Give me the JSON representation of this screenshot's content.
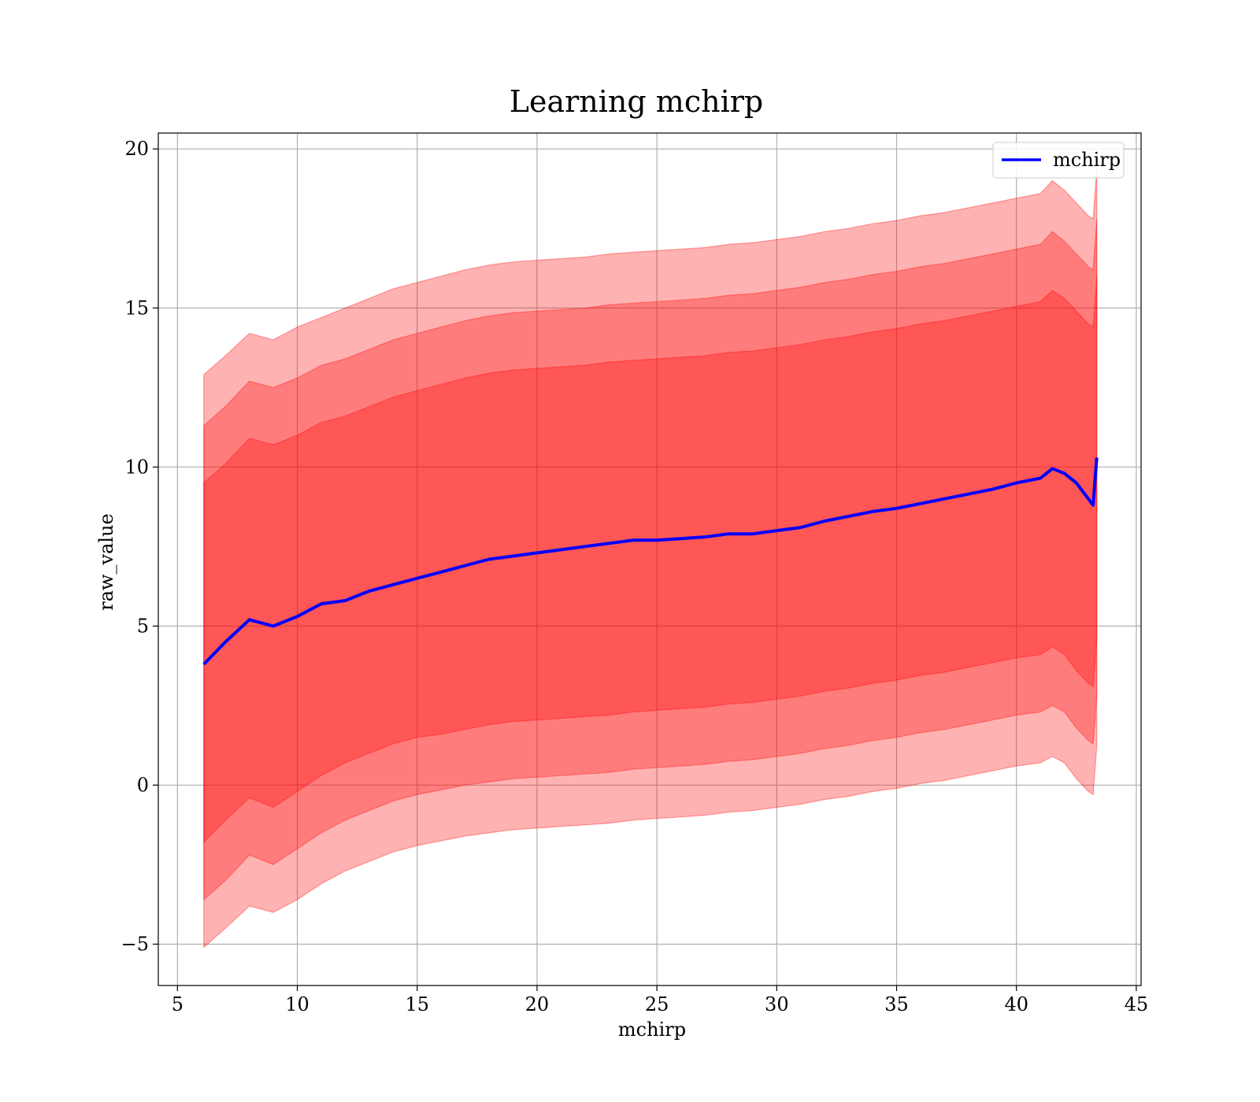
{
  "chart_data": {
    "type": "line",
    "title": "Learning mchirp",
    "xlabel": "mchirp",
    "ylabel": "raw_value",
    "xlim": [
      4.2,
      45.2
    ],
    "ylim": [
      -6.3,
      20.5
    ],
    "xticks": [
      5,
      10,
      15,
      20,
      25,
      30,
      35,
      40,
      45
    ],
    "yticks": [
      -5,
      0,
      5,
      10,
      15,
      20
    ],
    "xtick_labels": [
      "5",
      "10",
      "15",
      "20",
      "25",
      "30",
      "35",
      "40",
      "45"
    ],
    "ytick_labels": [
      "−5",
      "0",
      "5",
      "10",
      "15",
      "20"
    ],
    "grid": true,
    "legend": {
      "position": "top-right",
      "entries": [
        "mchirp"
      ]
    },
    "colors": {
      "line": "#0000ff",
      "band": "#ff0000",
      "grid": "#b0b0b0"
    },
    "x": [
      6.1,
      7,
      8,
      9,
      10,
      11,
      12,
      13,
      14,
      15,
      16,
      17,
      18,
      19,
      20,
      21,
      22,
      23,
      24,
      25,
      26,
      27,
      28,
      29,
      30,
      31,
      32,
      33,
      34,
      35,
      36,
      37,
      38,
      39,
      40,
      41,
      41.5,
      42,
      42.5,
      43,
      43.2,
      43.35
    ],
    "series": [
      {
        "name": "mchirp",
        "values": [
          3.8,
          4.5,
          5.2,
          5.0,
          5.3,
          5.7,
          5.8,
          6.1,
          6.3,
          6.5,
          6.7,
          6.9,
          7.1,
          7.2,
          7.3,
          7.4,
          7.5,
          7.6,
          7.7,
          7.7,
          7.75,
          7.8,
          7.9,
          7.9,
          8.0,
          8.1,
          8.3,
          8.45,
          8.6,
          8.7,
          8.85,
          9.0,
          9.15,
          9.3,
          9.5,
          9.65,
          9.95,
          9.8,
          9.5,
          9.0,
          8.8,
          10.3
        ]
      }
    ],
    "bands": [
      {
        "lower": [
          -1.8,
          -1.1,
          -0.4,
          -0.7,
          -0.2,
          0.3,
          0.7,
          1.0,
          1.3,
          1.5,
          1.6,
          1.75,
          1.9,
          2.0,
          2.05,
          2.1,
          2.15,
          2.2,
          2.3,
          2.35,
          2.4,
          2.45,
          2.55,
          2.6,
          2.7,
          2.8,
          2.95,
          3.05,
          3.2,
          3.3,
          3.45,
          3.55,
          3.7,
          3.85,
          4.0,
          4.1,
          4.35,
          4.1,
          3.6,
          3.2,
          3.1,
          4.6
        ],
        "upper": [
          9.5,
          10.1,
          10.9,
          10.7,
          11.0,
          11.4,
          11.6,
          11.9,
          12.2,
          12.4,
          12.6,
          12.8,
          12.95,
          13.05,
          13.1,
          13.15,
          13.2,
          13.3,
          13.35,
          13.4,
          13.45,
          13.5,
          13.6,
          13.65,
          13.75,
          13.85,
          14.0,
          14.1,
          14.25,
          14.35,
          14.5,
          14.6,
          14.75,
          14.9,
          15.05,
          15.2,
          15.55,
          15.3,
          14.9,
          14.5,
          14.4,
          16.0
        ]
      },
      {
        "lower": [
          -3.6,
          -3.0,
          -2.2,
          -2.5,
          -2.0,
          -1.5,
          -1.1,
          -0.8,
          -0.5,
          -0.3,
          -0.15,
          0.0,
          0.1,
          0.2,
          0.25,
          0.3,
          0.35,
          0.4,
          0.5,
          0.55,
          0.6,
          0.65,
          0.75,
          0.8,
          0.9,
          1.0,
          1.15,
          1.25,
          1.4,
          1.5,
          1.65,
          1.75,
          1.9,
          2.05,
          2.2,
          2.3,
          2.5,
          2.3,
          1.8,
          1.4,
          1.3,
          2.8
        ],
        "upper": [
          11.3,
          11.9,
          12.7,
          12.5,
          12.8,
          13.2,
          13.4,
          13.7,
          14.0,
          14.2,
          14.4,
          14.6,
          14.75,
          14.85,
          14.9,
          14.95,
          15.0,
          15.1,
          15.15,
          15.2,
          15.25,
          15.3,
          15.4,
          15.45,
          15.55,
          15.65,
          15.8,
          15.9,
          16.05,
          16.15,
          16.3,
          16.4,
          16.55,
          16.7,
          16.85,
          17.0,
          17.4,
          17.1,
          16.7,
          16.3,
          16.2,
          17.8
        ]
      },
      {
        "lower": [
          -5.1,
          -4.5,
          -3.8,
          -4.0,
          -3.6,
          -3.1,
          -2.7,
          -2.4,
          -2.1,
          -1.9,
          -1.75,
          -1.6,
          -1.5,
          -1.4,
          -1.35,
          -1.3,
          -1.25,
          -1.2,
          -1.1,
          -1.05,
          -1.0,
          -0.95,
          -0.85,
          -0.8,
          -0.7,
          -0.6,
          -0.45,
          -0.35,
          -0.2,
          -0.1,
          0.05,
          0.15,
          0.3,
          0.45,
          0.6,
          0.7,
          0.9,
          0.7,
          0.2,
          -0.2,
          -0.3,
          1.2
        ],
        "upper": [
          12.9,
          13.5,
          14.2,
          14.0,
          14.4,
          14.7,
          15.0,
          15.3,
          15.6,
          15.8,
          16.0,
          16.2,
          16.35,
          16.45,
          16.5,
          16.55,
          16.6,
          16.7,
          16.75,
          16.8,
          16.85,
          16.9,
          17.0,
          17.05,
          17.15,
          17.25,
          17.4,
          17.5,
          17.65,
          17.75,
          17.9,
          18.0,
          18.15,
          18.3,
          18.45,
          18.6,
          19.0,
          18.7,
          18.3,
          17.9,
          17.8,
          19.4
        ]
      }
    ]
  }
}
